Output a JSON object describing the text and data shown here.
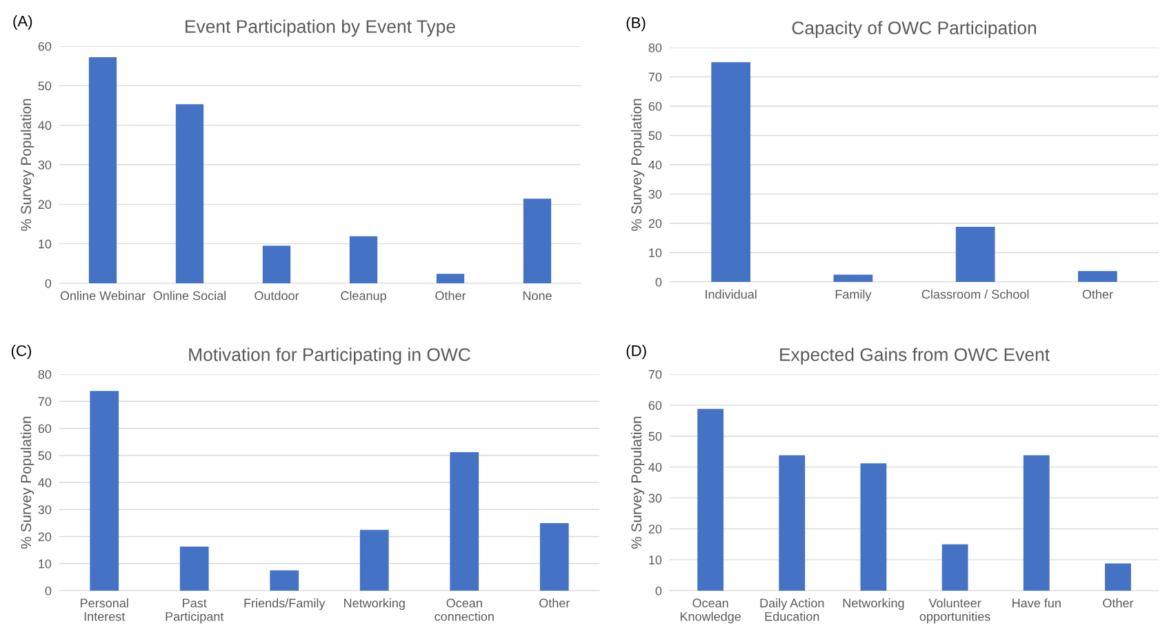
{
  "chart_data": [
    {
      "type": "bar",
      "title": "Event Participation by Event Type",
      "ylabel": "% Survey Population",
      "annotations": [
        "(A)"
      ],
      "categories": [
        "Online Webinar",
        "Online Social",
        "Outdoor",
        "Cleanup",
        "Other",
        "None"
      ],
      "values": [
        57.2,
        45.3,
        9.5,
        11.9,
        2.4,
        21.4
      ],
      "color": "#4472c4",
      "ylim": [
        0,
        60
      ],
      "yticks": [
        0,
        10,
        20,
        30,
        40,
        50,
        60
      ],
      "grid": "y"
    },
    {
      "type": "bar",
      "title": "Capacity of OWC Participation",
      "ylabel": "% Survey Population",
      "annotations": [
        "(B)"
      ],
      "categories": [
        "Individual",
        "Family",
        "Classroom / School",
        "Other"
      ],
      "values": [
        75,
        2.5,
        18.8,
        3.7
      ],
      "color": "#4472c4",
      "ylim": [
        0,
        80
      ],
      "yticks": [
        0,
        10,
        20,
        30,
        40,
        50,
        60,
        70,
        80
      ],
      "grid": "y"
    },
    {
      "type": "bar",
      "title": "Motivation for Participating in OWC",
      "ylabel": "% Survey Population",
      "annotations": [
        "(C)"
      ],
      "categories": [
        "Personal\nInterest",
        "Past\nParticipant",
        "Friends/Family",
        "Networking",
        "Ocean\nconnection",
        "Other"
      ],
      "values": [
        73.8,
        16.3,
        7.5,
        22.5,
        51.2,
        25
      ],
      "color": "#4472c4",
      "ylim": [
        0,
        80
      ],
      "yticks": [
        0,
        10,
        20,
        30,
        40,
        50,
        60,
        70,
        80
      ],
      "grid": "y"
    },
    {
      "type": "bar",
      "title": "Expected Gains from OWC Event",
      "ylabel": "% Survey Population",
      "annotations": [
        "(D)"
      ],
      "categories": [
        "Ocean\nKnowledge",
        "Daily Action\nEducation",
        "Networking",
        "Volunteer\nopportunities",
        "Have fun",
        "Other"
      ],
      "values": [
        58.8,
        43.8,
        41.2,
        15,
        43.8,
        8.8
      ],
      "color": "#4472c4",
      "ylim": [
        0,
        70
      ],
      "yticks": [
        0,
        10,
        20,
        30,
        40,
        50,
        60,
        70
      ],
      "grid": "y"
    }
  ]
}
